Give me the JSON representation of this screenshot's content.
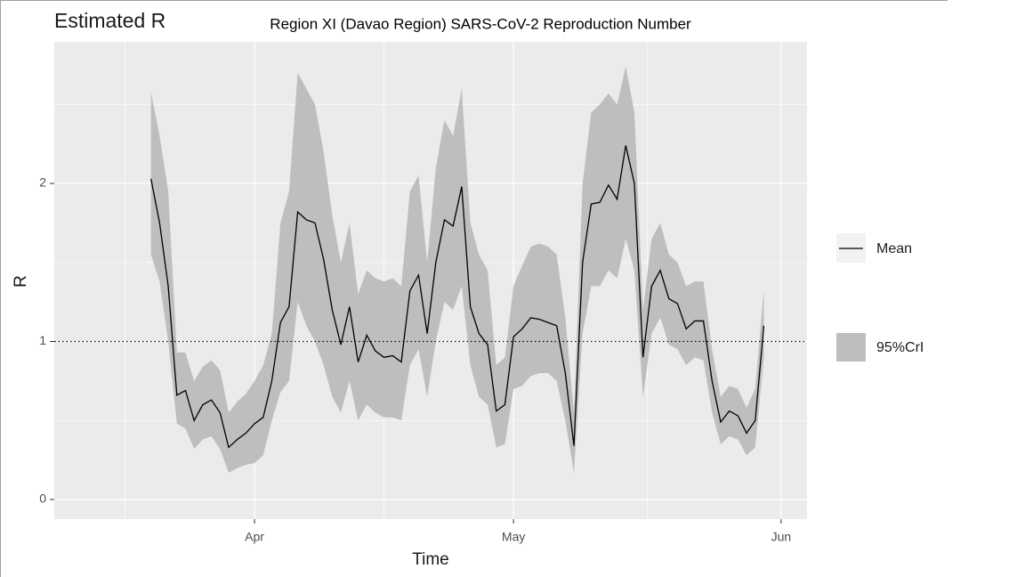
{
  "chart_data": {
    "type": "ribbon-line",
    "title": "Estimated R",
    "subtitle": "Region XI (Davao Region) SARS-CoV-2 Reproduction Number",
    "x_label": "Time",
    "y_label": "R",
    "x": [
      -12,
      -11,
      -10,
      -9,
      -8,
      -7,
      -6,
      -5,
      -4,
      -3,
      -2,
      -1,
      0,
      1,
      2,
      3,
      4,
      5,
      6,
      7,
      8,
      9,
      10,
      11,
      12,
      13,
      14,
      15,
      16,
      17,
      18,
      19,
      20,
      21,
      22,
      23,
      24,
      25,
      26,
      27,
      28,
      29,
      30,
      31,
      32,
      33,
      34,
      35,
      36,
      37,
      38,
      39,
      40,
      41,
      42,
      43,
      44,
      45,
      46,
      47,
      48,
      49,
      50,
      51,
      52,
      53,
      54,
      55,
      56,
      57,
      58,
      59
    ],
    "series": [
      {
        "name": "Mean",
        "color": "#000000",
        "values": [
          2.03,
          1.75,
          1.35,
          0.66,
          0.69,
          0.5,
          0.6,
          0.63,
          0.55,
          0.33,
          0.38,
          0.42,
          0.48,
          0.52,
          0.75,
          1.12,
          1.22,
          1.82,
          1.77,
          1.75,
          1.52,
          1.2,
          0.98,
          1.22,
          0.87,
          1.04,
          0.94,
          0.9,
          0.91,
          0.87,
          1.32,
          1.42,
          1.05,
          1.5,
          1.77,
          1.73,
          1.98,
          1.22,
          1.05,
          0.98,
          0.56,
          0.6,
          1.03,
          1.08,
          1.15,
          1.14,
          1.12,
          1.1,
          0.8,
          0.34,
          1.5,
          1.87,
          1.88,
          1.99,
          1.9,
          2.24,
          2.0,
          0.9,
          1.35,
          1.45,
          1.27,
          1.24,
          1.08,
          1.13,
          1.13,
          0.75,
          0.49,
          0.56,
          0.53,
          0.42,
          0.5,
          1.1
        ]
      }
    ],
    "band": {
      "name": "95%CrI",
      "color": "#bebebe",
      "upper": [
        2.58,
        2.3,
        1.95,
        0.93,
        0.93,
        0.75,
        0.84,
        0.88,
        0.82,
        0.55,
        0.62,
        0.67,
        0.75,
        0.85,
        1.05,
        1.75,
        1.95,
        2.7,
        2.6,
        2.5,
        2.2,
        1.8,
        1.5,
        1.75,
        1.3,
        1.45,
        1.4,
        1.38,
        1.4,
        1.35,
        1.95,
        2.05,
        1.5,
        2.1,
        2.4,
        2.3,
        2.6,
        1.75,
        1.55,
        1.45,
        0.85,
        0.9,
        1.35,
        1.48,
        1.6,
        1.62,
        1.6,
        1.55,
        1.15,
        0.55,
        2.0,
        2.45,
        2.5,
        2.57,
        2.5,
        2.74,
        2.45,
        1.2,
        1.65,
        1.75,
        1.55,
        1.5,
        1.35,
        1.38,
        1.38,
        0.95,
        0.65,
        0.72,
        0.7,
        0.58,
        0.7,
        1.33
      ],
      "lower": [
        1.55,
        1.38,
        1.0,
        0.48,
        0.45,
        0.32,
        0.38,
        0.4,
        0.32,
        0.17,
        0.2,
        0.22,
        0.23,
        0.28,
        0.5,
        0.68,
        0.75,
        1.25,
        1.1,
        1.0,
        0.85,
        0.65,
        0.55,
        0.75,
        0.5,
        0.6,
        0.55,
        0.52,
        0.52,
        0.5,
        0.85,
        0.95,
        0.65,
        1.0,
        1.25,
        1.2,
        1.35,
        0.85,
        0.65,
        0.6,
        0.33,
        0.35,
        0.7,
        0.72,
        0.78,
        0.8,
        0.8,
        0.75,
        0.5,
        0.17,
        1.05,
        1.35,
        1.35,
        1.45,
        1.4,
        1.65,
        1.45,
        0.65,
        1.05,
        1.15,
        0.98,
        0.95,
        0.85,
        0.9,
        0.88,
        0.55,
        0.35,
        0.4,
        0.38,
        0.28,
        0.33,
        0.9
      ]
    },
    "reference_line": 1,
    "xlim": [
      -23.2,
      64
    ],
    "ylim": [
      -0.124,
      2.896
    ],
    "xticks": [
      {
        "value": 0,
        "label": "Apr"
      },
      {
        "value": 30,
        "label": "May"
      },
      {
        "value": 61,
        "label": "Jun"
      }
    ],
    "yticks": [
      0,
      1,
      2
    ],
    "grid": true
  }
}
